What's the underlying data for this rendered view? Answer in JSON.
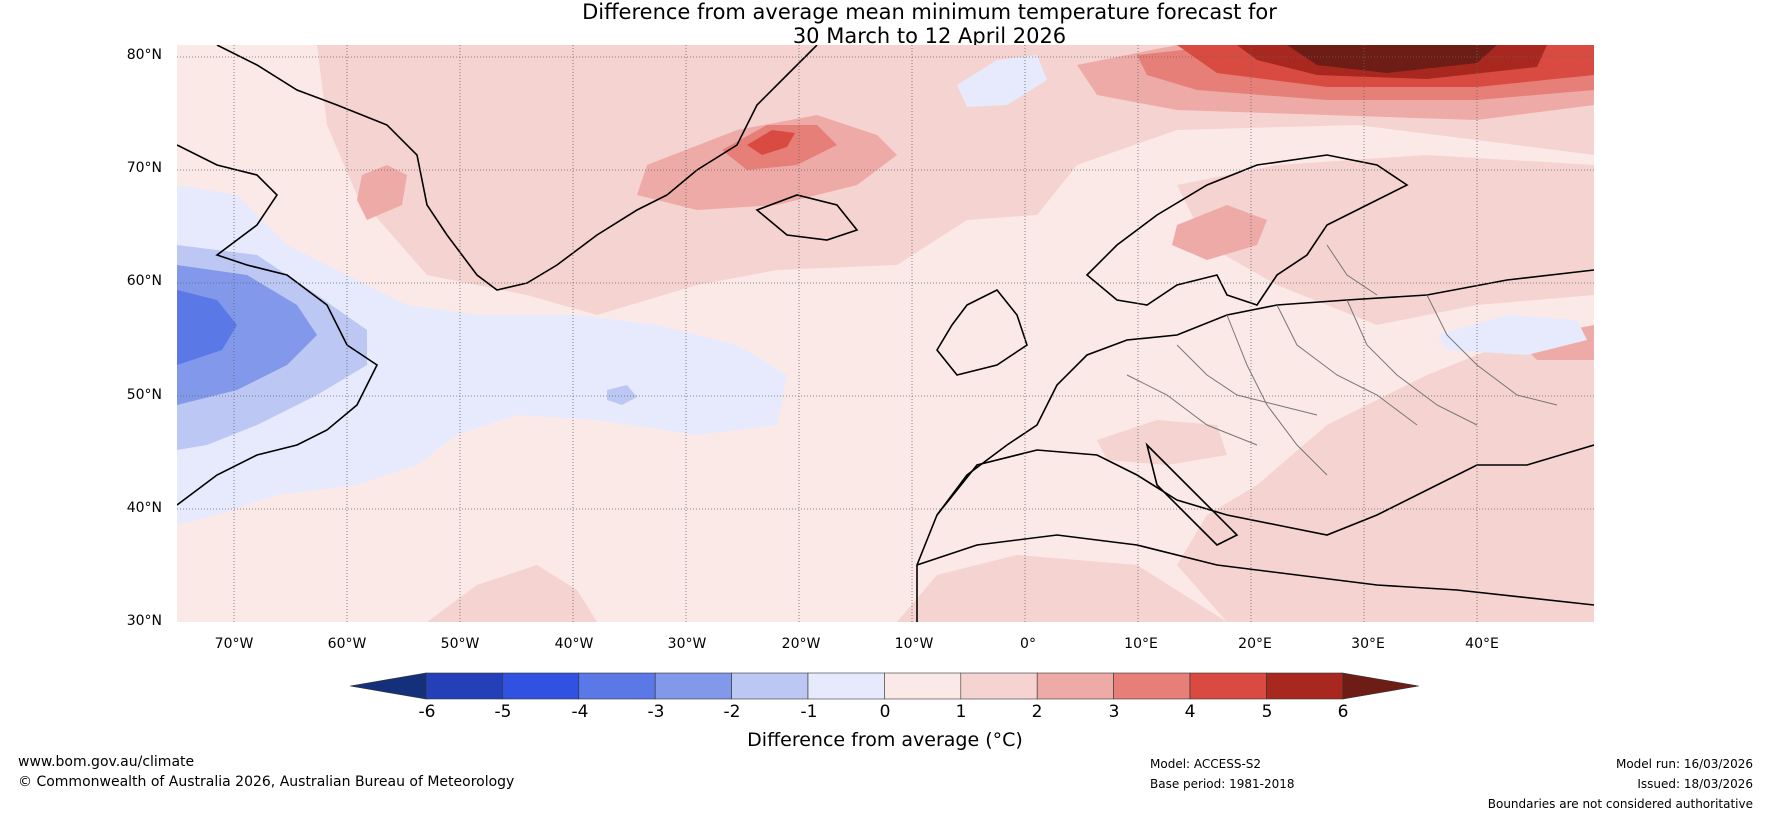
{
  "title": {
    "line1": "Difference from average mean minimum temperature forecast for",
    "line2": "30 March to 12 April 2026"
  },
  "map": {
    "lat_labels": [
      "80°N",
      "70°N",
      "60°N",
      "50°N",
      "40°N",
      "30°N"
    ],
    "lon_labels": [
      "70°W",
      "60°W",
      "50°W",
      "40°W",
      "30°W",
      "20°W",
      "10°W",
      "0°",
      "10°E",
      "20°E",
      "30°E",
      "40°E"
    ],
    "lat_range": [
      30,
      81
    ],
    "lon_range": [
      -75,
      50
    ]
  },
  "colorbar": {
    "ticks": [
      "-6",
      "-5",
      "-4",
      "-3",
      "-2",
      "-1",
      "0",
      "1",
      "2",
      "3",
      "4",
      "5",
      "6"
    ],
    "colors": [
      "#14307a",
      "#2440b8",
      "#2f52e0",
      "#5a78e6",
      "#8298ea",
      "#bcc7f3",
      "#e6eafc",
      "#fbe9e7",
      "#f5d3d0",
      "#eeaaa6",
      "#e67f78",
      "#d94a40",
      "#a8281f",
      "#6e1c16"
    ],
    "label": "Difference from average (°C)"
  },
  "footer": {
    "website": "www.bom.gov.au/climate",
    "copyright": "© Commonwealth of Australia 2026, Australian Bureau of Meteorology",
    "model": "Model: ACCESS-S2",
    "base_period": "Base period: 1981-2018",
    "model_run": "Model run: 16/03/2026",
    "issued": "Issued: 18/03/2026",
    "disclaimer": "Boundaries are not considered authoritative"
  }
}
